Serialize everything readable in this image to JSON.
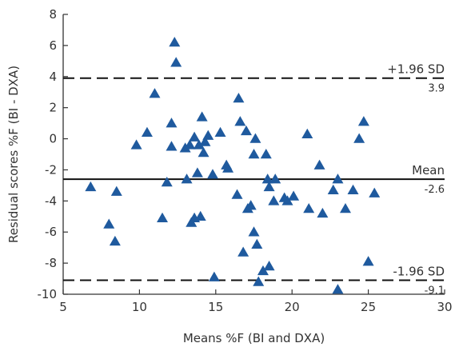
{
  "chart_data": {
    "type": "scatter",
    "title": "",
    "xlabel": "Means %F (BI and DXA)",
    "ylabel": "Residual scores %F (BI - DXA)",
    "xlim": [
      5,
      30
    ],
    "ylim": [
      -10,
      8
    ],
    "xticks": [
      5,
      10,
      15,
      20,
      25,
      30
    ],
    "yticks": [
      8,
      6,
      4,
      2,
      0,
      -2,
      -4,
      -6,
      -8,
      -10
    ],
    "marker": "triangle",
    "marker_color": "#1f5a9e",
    "grid": false,
    "legend": "none",
    "reference_lines": [
      {
        "label": "+1.96 SD",
        "value_text": "3.9",
        "y": 3.9,
        "style": "dashed"
      },
      {
        "label": "Mean",
        "value_text": "-2.6",
        "y": -2.6,
        "style": "solid"
      },
      {
        "label": "-1.96 SD",
        "value_text": "-9.1",
        "y": -9.1,
        "style": "dashed"
      }
    ],
    "points": [
      [
        6.8,
        -3.1
      ],
      [
        8.0,
        -5.5
      ],
      [
        8.4,
        -6.6
      ],
      [
        8.5,
        -3.4
      ],
      [
        9.8,
        -0.4
      ],
      [
        10.5,
        0.4
      ],
      [
        11.0,
        2.9
      ],
      [
        11.5,
        -5.1
      ],
      [
        11.8,
        -2.8
      ],
      [
        12.1,
        1.0
      ],
      [
        12.1,
        -0.5
      ],
      [
        12.3,
        6.2
      ],
      [
        12.4,
        4.9
      ],
      [
        13.0,
        -0.6
      ],
      [
        13.1,
        -2.6
      ],
      [
        13.3,
        -0.4
      ],
      [
        13.4,
        -5.4
      ],
      [
        13.6,
        -5.1
      ],
      [
        13.6,
        0.1
      ],
      [
        13.8,
        -2.2
      ],
      [
        13.9,
        -0.4
      ],
      [
        14.0,
        -5.0
      ],
      [
        14.1,
        1.4
      ],
      [
        14.2,
        -0.9
      ],
      [
        14.3,
        -0.2
      ],
      [
        14.5,
        0.2
      ],
      [
        14.8,
        -2.3
      ],
      [
        14.9,
        -8.9
      ],
      [
        15.3,
        0.4
      ],
      [
        15.7,
        -1.7
      ],
      [
        15.8,
        -1.9
      ],
      [
        16.4,
        -3.6
      ],
      [
        16.5,
        2.6
      ],
      [
        16.6,
        1.1
      ],
      [
        16.8,
        -7.3
      ],
      [
        17.0,
        0.5
      ],
      [
        17.1,
        -4.5
      ],
      [
        17.3,
        -4.3
      ],
      [
        17.5,
        -1.0
      ],
      [
        17.5,
        -6.0
      ],
      [
        17.6,
        0.0
      ],
      [
        17.7,
        -6.8
      ],
      [
        17.8,
        -9.2
      ],
      [
        18.1,
        -8.5
      ],
      [
        18.3,
        -1.0
      ],
      [
        18.4,
        -2.6
      ],
      [
        18.5,
        -3.1
      ],
      [
        18.5,
        -8.2
      ],
      [
        18.8,
        -4.0
      ],
      [
        18.9,
        -2.6
      ],
      [
        19.5,
        -3.8
      ],
      [
        19.7,
        -4.0
      ],
      [
        20.1,
        -3.7
      ],
      [
        21.0,
        0.3
      ],
      [
        21.1,
        -4.5
      ],
      [
        21.8,
        -1.7
      ],
      [
        22.0,
        -4.8
      ],
      [
        22.7,
        -3.3
      ],
      [
        23.0,
        -2.6
      ],
      [
        23.0,
        -9.7
      ],
      [
        23.5,
        -4.5
      ],
      [
        24.0,
        -3.3
      ],
      [
        24.4,
        0.0
      ],
      [
        24.7,
        1.1
      ],
      [
        25.0,
        -7.9
      ],
      [
        25.4,
        -3.5
      ]
    ]
  }
}
